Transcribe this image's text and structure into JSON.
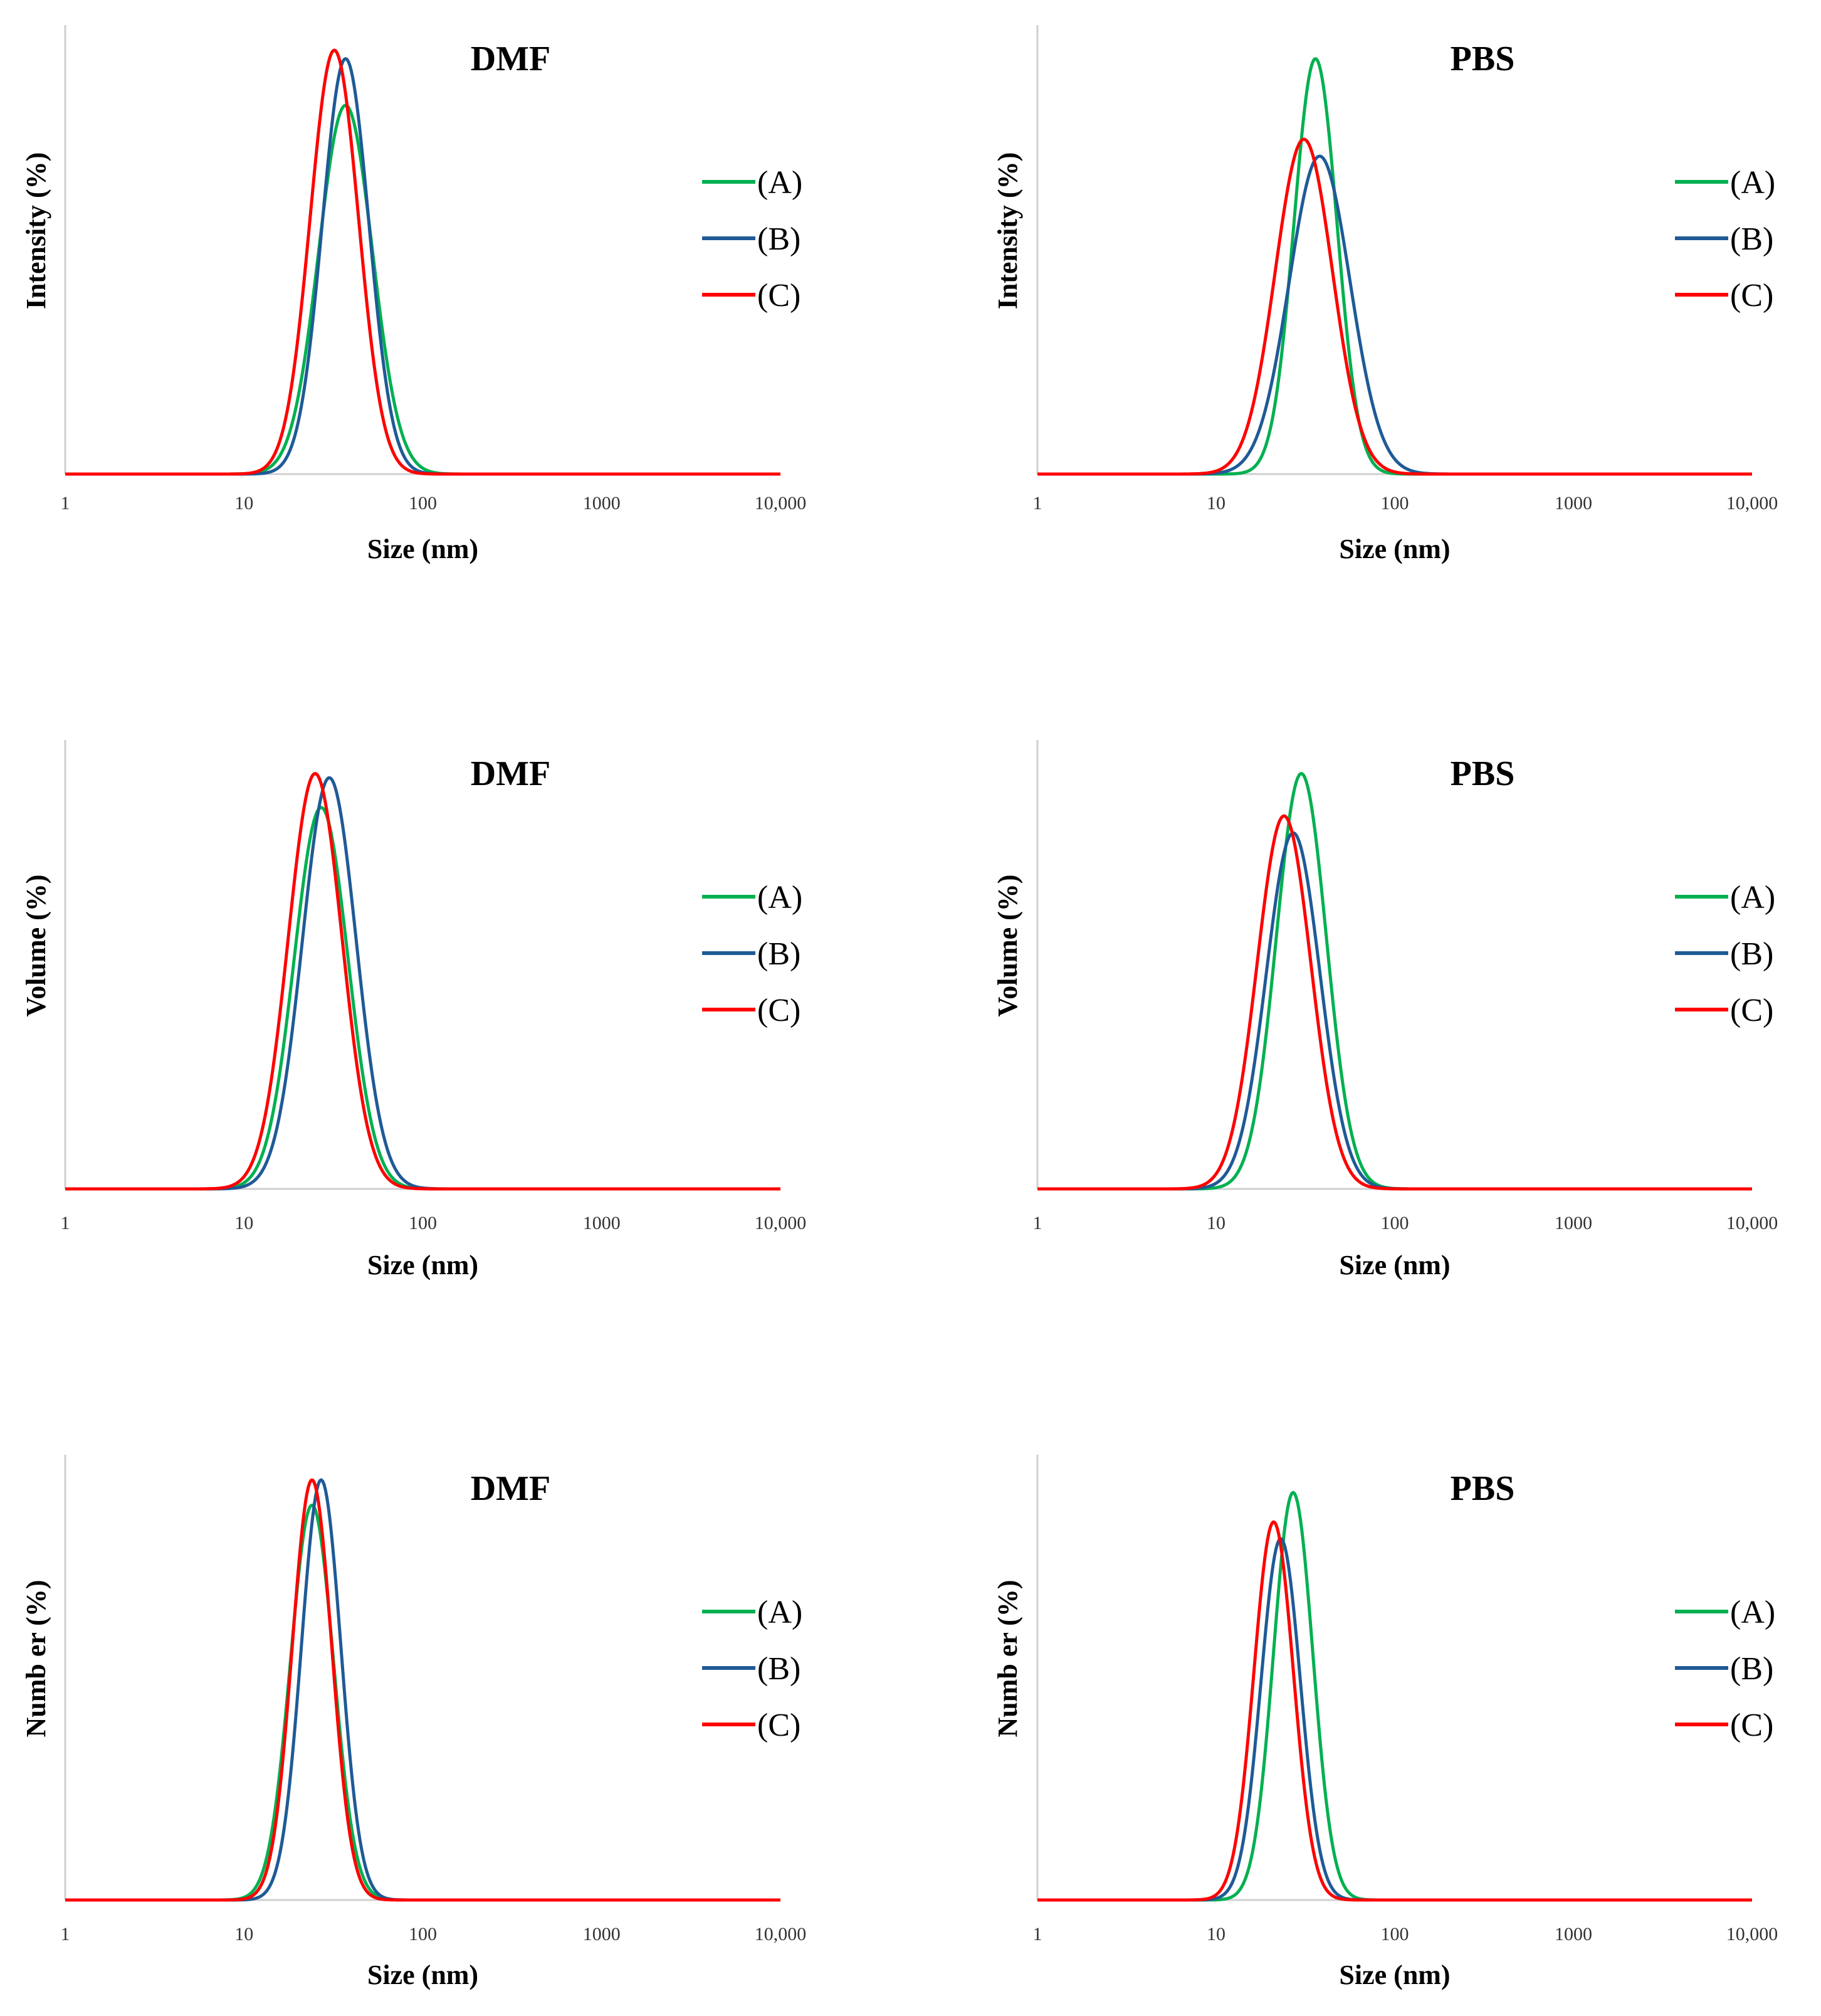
{
  "colors": {
    "A": "#00b050",
    "B": "#1f5a96",
    "C": "#ff0000",
    "axis": "#cfcfcf"
  },
  "chart_data": [
    {
      "type": "line",
      "title": "DMF",
      "ylabel": "Intensity (%)",
      "xlabel": "Size (nm)",
      "xscale": "log",
      "xlim": [
        1,
        10000
      ],
      "tick_labels": [
        "1",
        "10",
        "100",
        "1000",
        "10,000"
      ],
      "legend_position": "right",
      "series": [
        {
          "name": "(A)",
          "key": "A",
          "peak_nm": 37,
          "height": 0.87,
          "width": 0.15
        },
        {
          "name": "(B)",
          "key": "B",
          "peak_nm": 37,
          "height": 0.98,
          "width": 0.13
        },
        {
          "name": "(C)",
          "key": "C",
          "peak_nm": 32,
          "height": 1.0,
          "width": 0.135
        }
      ]
    },
    {
      "type": "line",
      "title": "PBS",
      "ylabel": "Intensity (%)",
      "xlabel": "Size (nm)",
      "xscale": "log",
      "xlim": [
        1,
        10000
      ],
      "tick_labels": [
        "1",
        "10",
        "100",
        "1000",
        "10,000"
      ],
      "legend_position": "right",
      "series": [
        {
          "name": "(A)",
          "key": "A",
          "peak_nm": 36,
          "height": 0.98,
          "width": 0.12
        },
        {
          "name": "(B)",
          "key": "B",
          "peak_nm": 38,
          "height": 0.75,
          "width": 0.17
        },
        {
          "name": "(C)",
          "key": "C",
          "peak_nm": 31,
          "height": 0.79,
          "width": 0.16
        }
      ]
    },
    {
      "type": "line",
      "title": "DMF",
      "ylabel": "Volume (%)",
      "xlabel": "Size (nm)",
      "xscale": "log",
      "xlim": [
        1,
        10000
      ],
      "tick_labels": [
        "1",
        "10",
        "100",
        "1000",
        "10,000"
      ],
      "legend_position": "right",
      "series": [
        {
          "name": "(A)",
          "key": "A",
          "peak_nm": 27,
          "height": 0.9,
          "width": 0.15
        },
        {
          "name": "(B)",
          "key": "B",
          "peak_nm": 30,
          "height": 0.97,
          "width": 0.15
        },
        {
          "name": "(C)",
          "key": "C",
          "peak_nm": 25,
          "height": 0.98,
          "width": 0.15
        }
      ]
    },
    {
      "type": "line",
      "title": "PBS",
      "ylabel": "Volume (%)",
      "xlabel": "Size (nm)",
      "xscale": "log",
      "xlim": [
        1,
        10000
      ],
      "tick_labels": [
        "1",
        "10",
        "100",
        "1000",
        "10,000"
      ],
      "legend_position": "right",
      "series": [
        {
          "name": "(A)",
          "key": "A",
          "peak_nm": 30,
          "height": 0.98,
          "width": 0.14
        },
        {
          "name": "(B)",
          "key": "B",
          "peak_nm": 27,
          "height": 0.84,
          "width": 0.15
        },
        {
          "name": "(C)",
          "key": "C",
          "peak_nm": 24,
          "height": 0.88,
          "width": 0.15
        }
      ]
    },
    {
      "type": "line",
      "title": "DMF",
      "ylabel": "Numb er (%)",
      "xlabel": "Size (nm)",
      "xscale": "log",
      "xlim": [
        1,
        10000
      ],
      "tick_labels": [
        "1",
        "10",
        "100",
        "1000",
        "10,000"
      ],
      "legend_position": "right",
      "series": [
        {
          "name": "(A)",
          "key": "A",
          "peak_nm": 24,
          "height": 0.94,
          "width": 0.12
        },
        {
          "name": "(B)",
          "key": "B",
          "peak_nm": 27,
          "height": 1.0,
          "width": 0.11
        },
        {
          "name": "(C)",
          "key": "C",
          "peak_nm": 24,
          "height": 1.0,
          "width": 0.11
        }
      ]
    },
    {
      "type": "line",
      "title": "PBS",
      "ylabel": "Numb er (%)",
      "xlabel": "Size (nm)",
      "xscale": "log",
      "xlim": [
        1,
        10000
      ],
      "tick_labels": [
        "1",
        "10",
        "100",
        "1000",
        "10,000"
      ],
      "legend_position": "right",
      "series": [
        {
          "name": "(A)",
          "key": "A",
          "peak_nm": 27,
          "height": 0.97,
          "width": 0.11
        },
        {
          "name": "(B)",
          "key": "B",
          "peak_nm": 23,
          "height": 0.86,
          "width": 0.11
        },
        {
          "name": "(C)",
          "key": "C",
          "peak_nm": 21,
          "height": 0.9,
          "width": 0.11
        }
      ]
    }
  ]
}
